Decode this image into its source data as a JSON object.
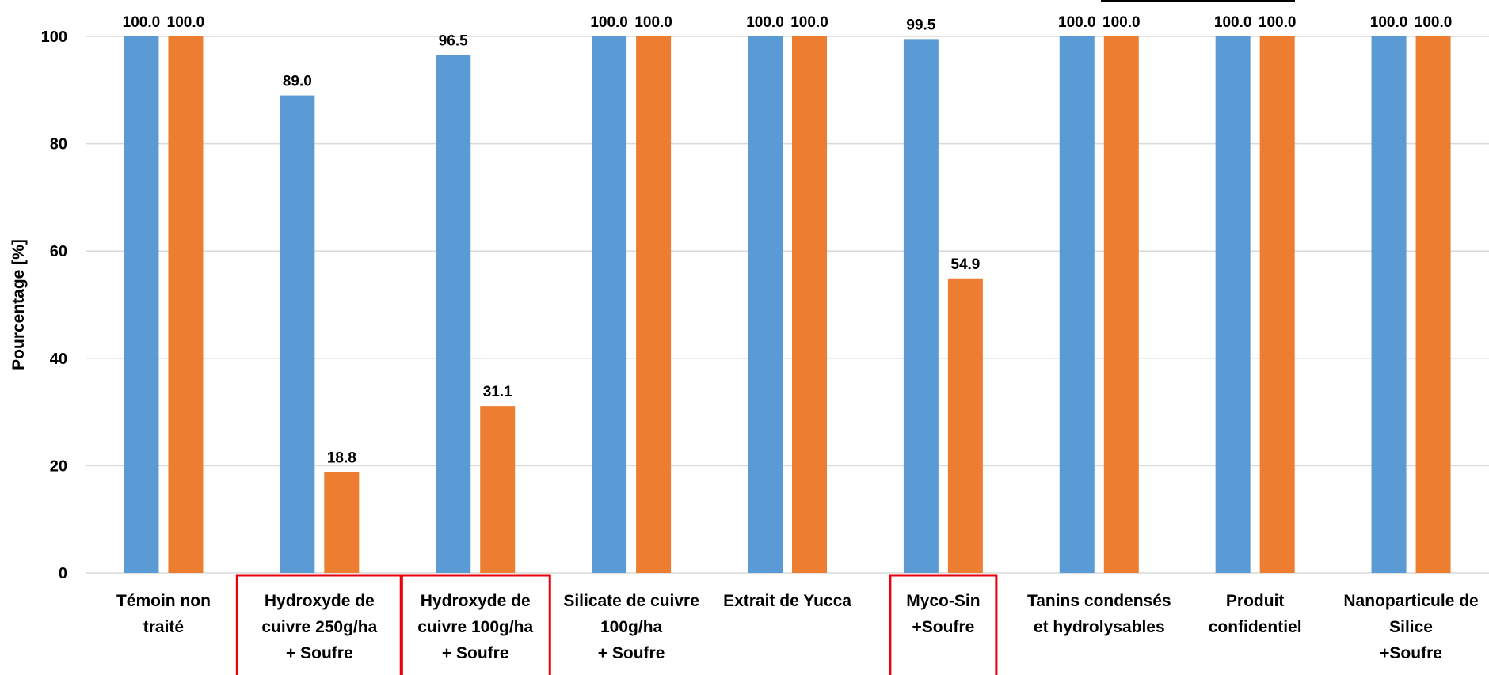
{
  "chart_data": {
    "type": "bar",
    "ylabel": "Pourcentage [%]",
    "ylim": [
      0,
      100
    ],
    "yticks": [
      0,
      20,
      40,
      60,
      80,
      100
    ],
    "grid": true,
    "categories": [
      [
        "Témoin non",
        "traité"
      ],
      [
        "Hydroxyde de",
        "cuivre 250g/ha",
        "+ Soufre"
      ],
      [
        "Hydroxyde de",
        "cuivre 100g/ha",
        "+ Soufre"
      ],
      [
        "Silicate de cuivre",
        "100g/ha",
        "+ Soufre"
      ],
      [
        "Extrait de Yucca"
      ],
      [
        "Myco-Sin",
        "+Soufre"
      ],
      [
        "Tanins condensés",
        "et hydrolysables"
      ],
      [
        "Produit",
        "confidentiel"
      ],
      [
        "Nanoparticule de",
        "Silice",
        "+Soufre"
      ]
    ],
    "highlighted_categories": [
      1,
      2,
      5
    ],
    "series": [
      {
        "color": "#5B9BD5",
        "values": [
          100.0,
          89.0,
          96.5,
          100.0,
          100.0,
          99.5,
          100.0,
          100.0,
          100.0
        ]
      },
      {
        "color": "#ED7D31",
        "values": [
          100.0,
          18.8,
          31.1,
          100.0,
          100.0,
          54.9,
          100.0,
          100.0,
          100.0
        ]
      }
    ],
    "highlight_color": "#E8000B",
    "grid_color": "#D9D9D9"
  }
}
